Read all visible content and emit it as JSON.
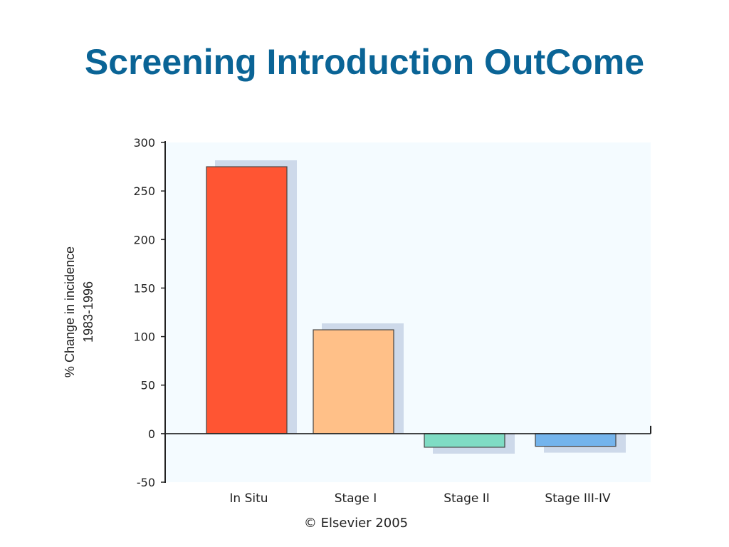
{
  "slide": {
    "title": "Screening Introduction OutCome",
    "credit": "© Elsevier 2005"
  },
  "chart_data": {
    "type": "bar",
    "categories": [
      "In Situ",
      "Stage I",
      "Stage II",
      "Stage III-IV"
    ],
    "values": [
      275,
      107,
      -14,
      -13
    ],
    "colors": [
      "#ff5533",
      "#ffc088",
      "#7fdcc4",
      "#74b4ec"
    ],
    "ylabel_lines": [
      "% Change in incidence",
      "1983-1996"
    ],
    "ylim": [
      -50,
      300
    ],
    "yticks": [
      -50,
      0,
      50,
      100,
      150,
      200,
      250,
      300
    ],
    "plot_background": "#f4fbff",
    "shadow_color": "#cdd9ea",
    "grid": false,
    "legend": "none"
  }
}
